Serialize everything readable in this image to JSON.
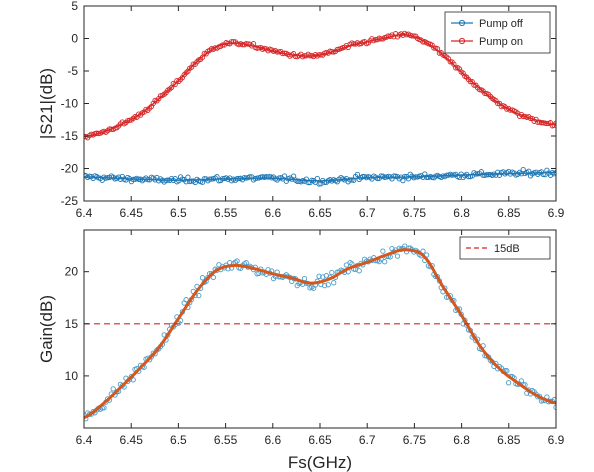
{
  "chart_data": [
    {
      "type": "scatter",
      "title": "",
      "xlabel": "",
      "ylabel": "|S21|(dB)",
      "xlim": [
        6.4,
        6.9
      ],
      "ylim": [
        -25,
        5
      ],
      "xticks": [
        "6.4",
        "6.45",
        "6.5",
        "6.55",
        "6.6",
        "6.65",
        "6.7",
        "6.75",
        "6.8",
        "6.85",
        "6.9"
      ],
      "yticks": [
        "-25",
        "-20",
        "-15",
        "-10",
        "-5",
        "0",
        "5"
      ],
      "grid": false,
      "legend_position": "top-right",
      "series": [
        {
          "name": "Pump off",
          "color": "#1f77b4",
          "marker": "circle",
          "x": [
            6.4,
            6.45,
            6.5,
            6.55,
            6.6,
            6.65,
            6.7,
            6.75,
            6.8,
            6.85,
            6.9
          ],
          "y": [
            -21.3,
            -21.6,
            -21.8,
            -21.6,
            -21.5,
            -21.9,
            -21.4,
            -21.3,
            -21.0,
            -20.8,
            -20.6
          ]
        },
        {
          "name": "Pump on",
          "color": "#d62728",
          "marker": "circle",
          "x": [
            6.4,
            6.42,
            6.44,
            6.46,
            6.48,
            6.5,
            6.52,
            6.54,
            6.56,
            6.58,
            6.6,
            6.62,
            6.64,
            6.66,
            6.68,
            6.7,
            6.72,
            6.74,
            6.76,
            6.78,
            6.8,
            6.82,
            6.84,
            6.86,
            6.88,
            6.9
          ],
          "y": [
            -15.1,
            -14.4,
            -13.2,
            -11.6,
            -9.2,
            -6.5,
            -3.5,
            -1.3,
            -0.7,
            -1.2,
            -1.9,
            -2.5,
            -2.7,
            -2.2,
            -1.2,
            -0.5,
            0.1,
            0.6,
            -0.4,
            -2.5,
            -5.2,
            -7.8,
            -10.0,
            -11.6,
            -12.6,
            -13.3
          ]
        }
      ]
    },
    {
      "type": "scatter",
      "title": "",
      "xlabel": "Fs(GHz)",
      "ylabel": "Gain(dB)",
      "xlim": [
        6.4,
        6.9
      ],
      "ylim": [
        5,
        24
      ],
      "xticks": [
        "6.4",
        "6.45",
        "6.5",
        "6.55",
        "6.6",
        "6.65",
        "6.7",
        "6.75",
        "6.8",
        "6.85",
        "6.9"
      ],
      "yticks": [
        "10",
        "15",
        "20"
      ],
      "grid": false,
      "legend_position": "top-right",
      "series": [
        {
          "name": "",
          "color": "#4a9cc9",
          "marker": "circle",
          "x": [
            6.4,
            6.42,
            6.44,
            6.46,
            6.48,
            6.5,
            6.52,
            6.54,
            6.56,
            6.58,
            6.6,
            6.62,
            6.64,
            6.66,
            6.68,
            6.7,
            6.72,
            6.74,
            6.76,
            6.78,
            6.8,
            6.82,
            6.84,
            6.86,
            6.88,
            6.9
          ],
          "y": [
            6.0,
            7.3,
            9.0,
            10.8,
            12.8,
            15.5,
            18.2,
            20.1,
            20.6,
            20.3,
            19.8,
            19.4,
            18.9,
            19.3,
            20.3,
            20.9,
            21.6,
            22.1,
            21.5,
            18.6,
            15.8,
            12.8,
            10.7,
            9.3,
            8.1,
            7.4
          ]
        },
        {
          "name": "",
          "color": "#d4571e",
          "marker": "line",
          "x": [
            6.4,
            6.42,
            6.44,
            6.46,
            6.48,
            6.5,
            6.52,
            6.54,
            6.56,
            6.58,
            6.6,
            6.62,
            6.64,
            6.66,
            6.68,
            6.7,
            6.72,
            6.74,
            6.76,
            6.78,
            6.8,
            6.82,
            6.84,
            6.86,
            6.88,
            6.9
          ],
          "y": [
            6.0,
            7.3,
            9.0,
            10.8,
            12.8,
            15.5,
            18.2,
            20.1,
            20.6,
            20.3,
            19.8,
            19.4,
            18.9,
            19.3,
            20.3,
            20.9,
            21.6,
            22.1,
            21.5,
            18.6,
            15.8,
            12.8,
            10.7,
            9.3,
            8.1,
            7.4
          ]
        },
        {
          "name": "15dB",
          "color": "#d62728",
          "marker": "dashed",
          "x": [
            6.4,
            6.9
          ],
          "y": [
            15,
            15
          ]
        }
      ]
    }
  ]
}
